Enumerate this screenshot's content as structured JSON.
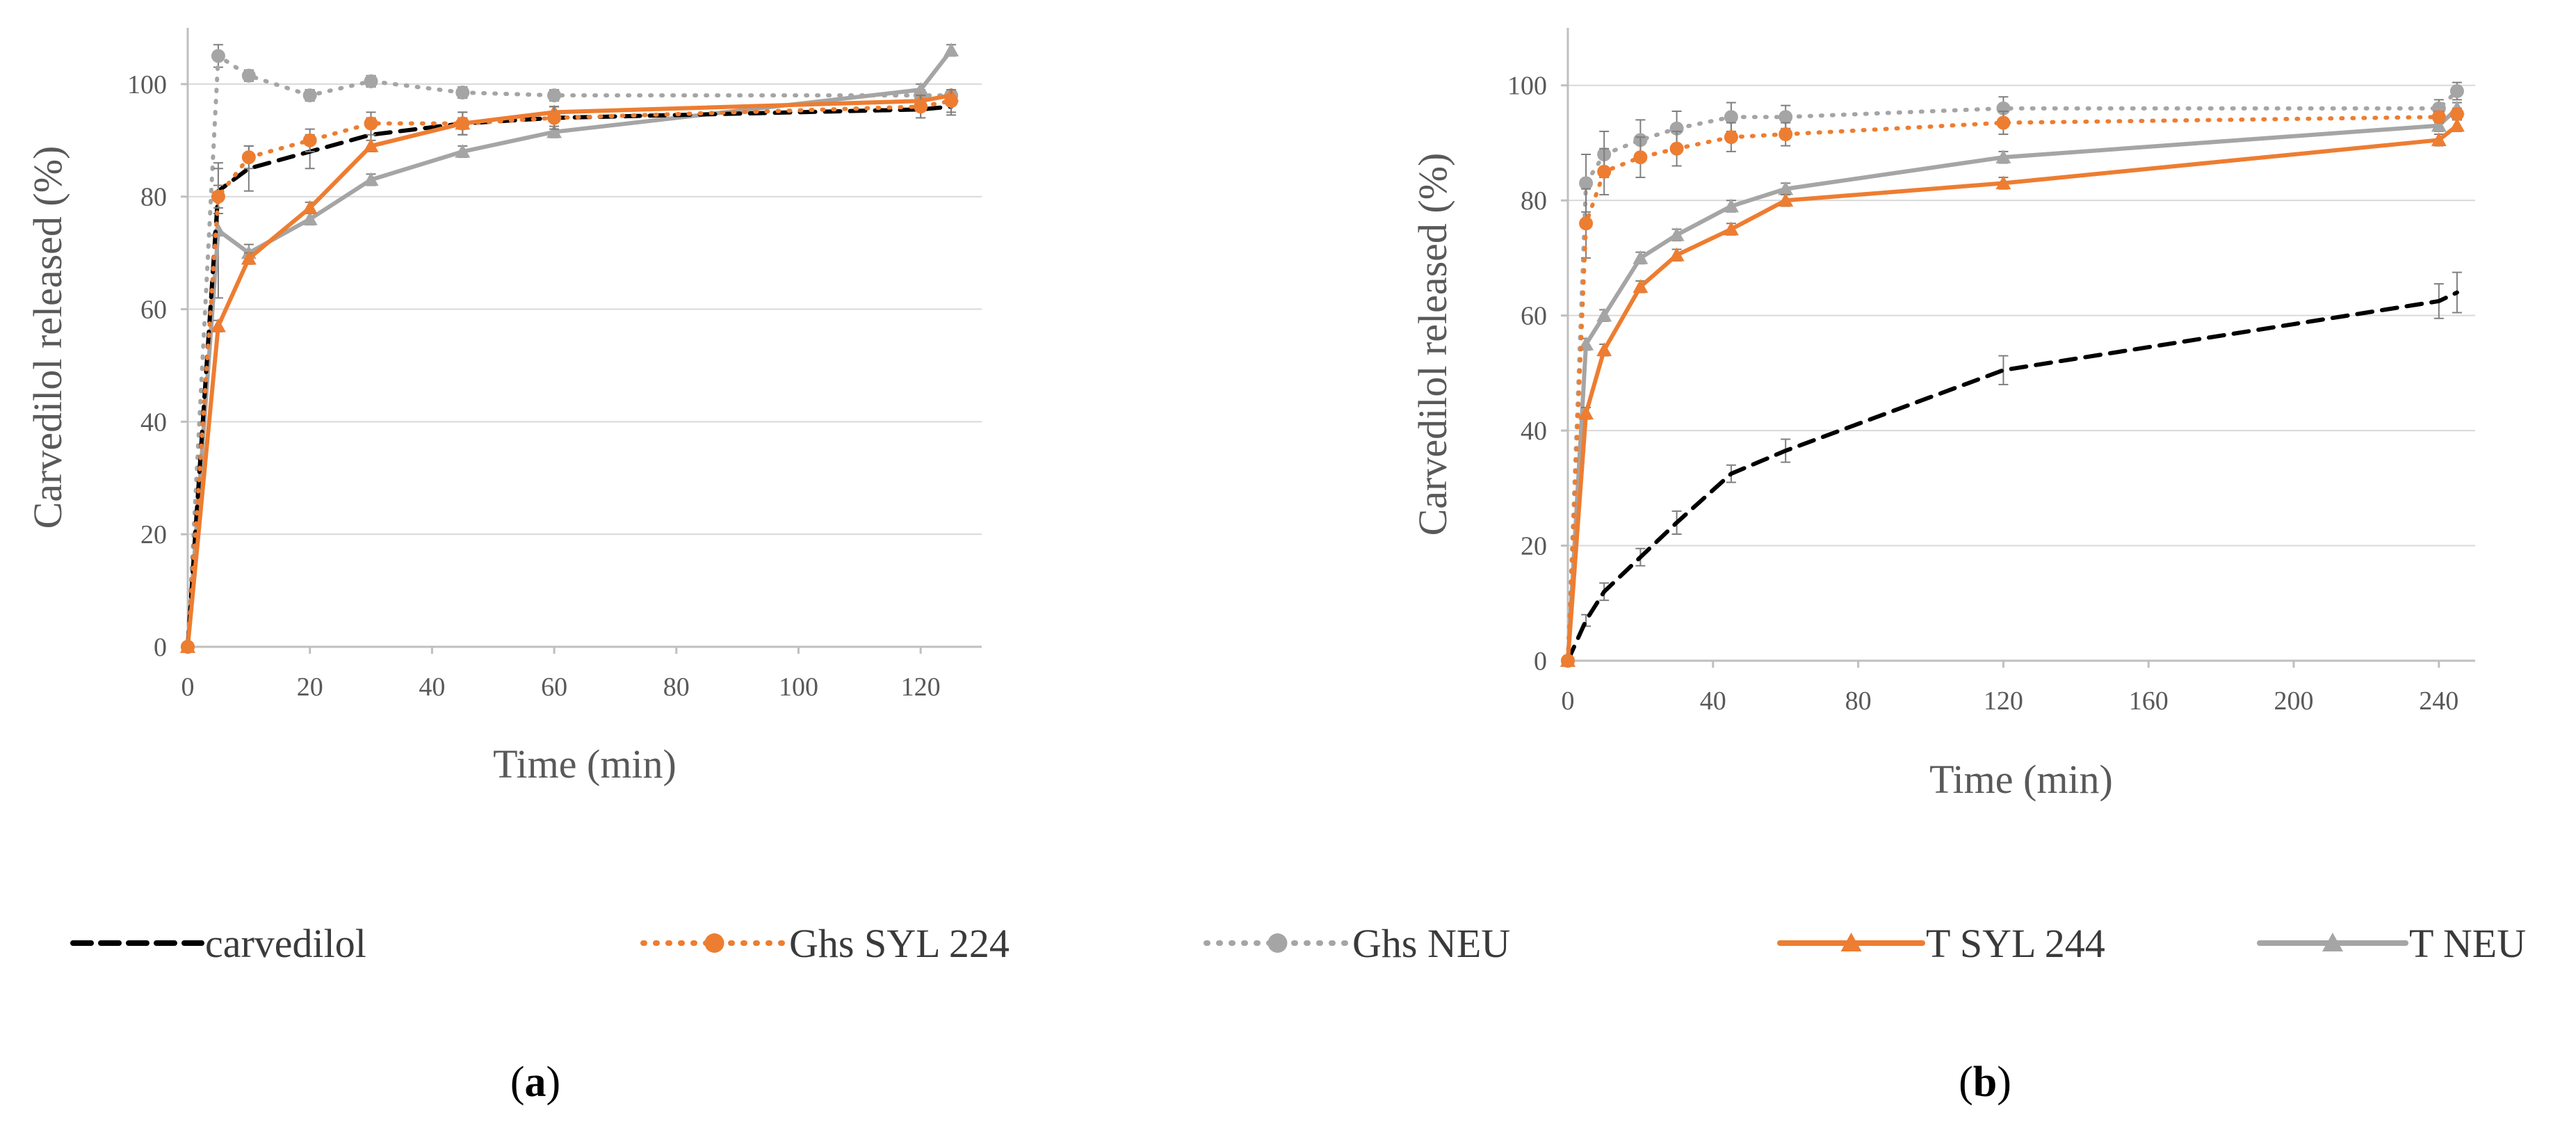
{
  "colors": {
    "carvedilol": "#000000",
    "ghs_syl": "#ED7D31",
    "ghs_neu": "#A5A5A5",
    "t_syl": "#ED7D31",
    "t_neu": "#A5A5A5",
    "grid": "#D9D9D9",
    "axis": "#BFBFBF",
    "text": "#595959"
  },
  "legend": {
    "items": [
      {
        "key": "carvedilol",
        "label": "carvedilol"
      },
      {
        "key": "ghs_syl",
        "label": "Ghs SYL 224"
      },
      {
        "key": "ghs_neu",
        "label": "Ghs NEU"
      },
      {
        "key": "t_syl",
        "label": "T SYL 244"
      },
      {
        "key": "t_neu",
        "label": "T NEU"
      }
    ]
  },
  "chart_data": [
    {
      "type": "line",
      "panel": "a",
      "panel_label": {
        "open": "(",
        "letter": "a",
        "close": ")"
      },
      "xlabel": "Time (min)",
      "ylabel": "Carvedilol released (%)",
      "xlim": [
        0,
        130
      ],
      "ylim": [
        0,
        110
      ],
      "xticks": [
        0,
        20,
        40,
        60,
        80,
        100,
        120
      ],
      "yticks": [
        0,
        20,
        40,
        60,
        80,
        100
      ],
      "grid": "horizontal",
      "series": [
        {
          "key": "carvedilol",
          "name": "carvedilol",
          "dash": "dashed",
          "marker": "none",
          "x": [
            0,
            5,
            10,
            20,
            30,
            45,
            60,
            120,
            125
          ],
          "y": [
            0,
            81,
            85,
            88,
            91,
            93,
            94,
            95.5,
            96
          ],
          "err": [
            0,
            4,
            4,
            3,
            3,
            2,
            2,
            1.5,
            1.5
          ]
        },
        {
          "key": "ghs_syl",
          "name": "Ghs SYL 224",
          "dash": "dotted",
          "marker": "circle",
          "x": [
            0,
            5,
            10,
            20,
            30,
            45,
            60,
            120,
            125
          ],
          "y": [
            0,
            80,
            87,
            90,
            93,
            93,
            94,
            96,
            97
          ],
          "err": [
            0,
            2,
            2,
            2,
            2,
            2,
            2,
            2,
            2
          ]
        },
        {
          "key": "ghs_neu",
          "name": "Ghs NEU",
          "dash": "dotted",
          "marker": "circle",
          "x": [
            0,
            5,
            10,
            20,
            30,
            45,
            60,
            120,
            125
          ],
          "y": [
            0,
            105,
            101.5,
            98,
            100.5,
            98.5,
            98,
            98,
            98
          ],
          "err": [
            0,
            2,
            1,
            1,
            1,
            1,
            1,
            1,
            1
          ]
        },
        {
          "key": "t_syl",
          "name": "T SYL 244",
          "dash": "solid",
          "marker": "triangle",
          "x": [
            0,
            5,
            10,
            20,
            30,
            45,
            60,
            120,
            125
          ],
          "y": [
            0,
            57,
            69,
            78,
            89,
            93,
            95,
            97,
            98
          ],
          "err": [
            0,
            1,
            1,
            1,
            1,
            1,
            1,
            1,
            1
          ]
        },
        {
          "key": "t_neu",
          "name": "T NEU",
          "dash": "solid",
          "marker": "triangle",
          "x": [
            0,
            5,
            10,
            20,
            30,
            45,
            60,
            120,
            125
          ],
          "y": [
            0,
            74,
            70,
            76,
            83,
            88,
            91.5,
            99,
            106
          ],
          "err": [
            0,
            12,
            1.5,
            1,
            1,
            1,
            1,
            1,
            1
          ]
        }
      ]
    },
    {
      "type": "line",
      "panel": "b",
      "panel_label": {
        "open": "(",
        "letter": "b",
        "close": ")"
      },
      "xlabel": "Time (min)",
      "ylabel": "Carvedilol released (%)",
      "xlim": [
        0,
        250
      ],
      "ylim": [
        0,
        110
      ],
      "xticks": [
        0,
        40,
        80,
        120,
        160,
        200,
        240
      ],
      "yticks": [
        0,
        20,
        40,
        60,
        80,
        100
      ],
      "grid": "horizontal",
      "series": [
        {
          "key": "carvedilol",
          "name": "carvedilol",
          "dash": "dashed",
          "marker": "none",
          "x": [
            0,
            5,
            10,
            20,
            30,
            45,
            60,
            120,
            240,
            245
          ],
          "y": [
            0,
            7,
            12,
            18,
            24,
            32.5,
            36.5,
            50.5,
            62.5,
            64
          ],
          "err": [
            0,
            1,
            1.5,
            1.5,
            2,
            1.5,
            2,
            2.5,
            3,
            3.5
          ]
        },
        {
          "key": "ghs_syl",
          "name": "Ghs SYL 224",
          "dash": "dotted",
          "marker": "circle",
          "x": [
            0,
            5,
            10,
            20,
            30,
            45,
            60,
            120,
            240,
            245
          ],
          "y": [
            0,
            76,
            85,
            87.5,
            89,
            91,
            91.5,
            93.5,
            94.5,
            95
          ],
          "err": [
            0,
            6,
            4,
            3.5,
            3,
            2.5,
            2,
            2,
            1,
            1
          ]
        },
        {
          "key": "ghs_neu",
          "name": "Ghs NEU",
          "dash": "dotted",
          "marker": "circle",
          "x": [
            0,
            5,
            10,
            20,
            30,
            45,
            60,
            120,
            240,
            245
          ],
          "y": [
            0,
            83,
            88,
            90.5,
            92.5,
            94.5,
            94.5,
            96,
            96,
            99
          ],
          "err": [
            0,
            5,
            4,
            3.5,
            3,
            2.5,
            2,
            2,
            1.5,
            1.5
          ]
        },
        {
          "key": "t_syl",
          "name": "T SYL 244",
          "dash": "solid",
          "marker": "triangle",
          "x": [
            0,
            5,
            10,
            20,
            30,
            45,
            60,
            120,
            240,
            245
          ],
          "y": [
            0,
            43,
            54,
            65,
            70.5,
            75,
            80,
            83,
            90.5,
            93
          ],
          "err": [
            0,
            1,
            1,
            1,
            1,
            1,
            1,
            1,
            1,
            1
          ]
        },
        {
          "key": "t_neu",
          "name": "T NEU",
          "dash": "solid",
          "marker": "triangle",
          "x": [
            0,
            5,
            10,
            20,
            30,
            45,
            60,
            120,
            240,
            245
          ],
          "y": [
            0,
            55,
            60,
            70,
            74,
            79,
            82,
            87.5,
            93,
            96
          ],
          "err": [
            0,
            1,
            1,
            1,
            1,
            1,
            1,
            1,
            1,
            1
          ]
        }
      ]
    }
  ]
}
